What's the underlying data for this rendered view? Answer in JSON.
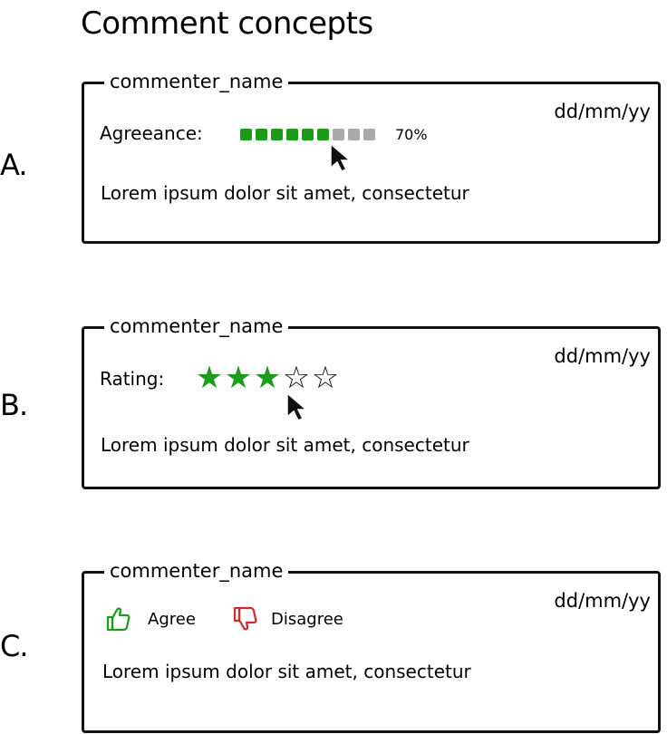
{
  "title": "Comment concepts",
  "colors": {
    "accent": "#1a9b1a",
    "muted": "#aaaaaa",
    "disagree": "#d32a2a",
    "ink": "#111111"
  },
  "concepts": [
    {
      "letter": "A.",
      "commenter": "commenter_name",
      "date": "dd/mm/yy",
      "control_label": "Agreeance:",
      "control_type": "segmented-meter",
      "meter_segments": 9,
      "meter_filled": 6,
      "meter_value_text": "70%",
      "comment_text": "Lorem ipsum dolor sit amet, consectetur"
    },
    {
      "letter": "B.",
      "commenter": "commenter_name",
      "date": "dd/mm/yy",
      "control_label": "Rating:",
      "control_type": "star-rating",
      "rating": 3,
      "rating_max": 5,
      "comment_text": "Lorem ipsum dolor sit amet, consectetur"
    },
    {
      "letter": "C.",
      "commenter": "commenter_name",
      "date": "dd/mm/yy",
      "control_type": "agree-disagree",
      "agree_label": "Agree",
      "disagree_label": "Disagree",
      "agree_icon": "thumbs-up-icon",
      "disagree_icon": "thumbs-down-icon",
      "comment_text": "Lorem ipsum dolor sit amet, consectetur"
    }
  ]
}
